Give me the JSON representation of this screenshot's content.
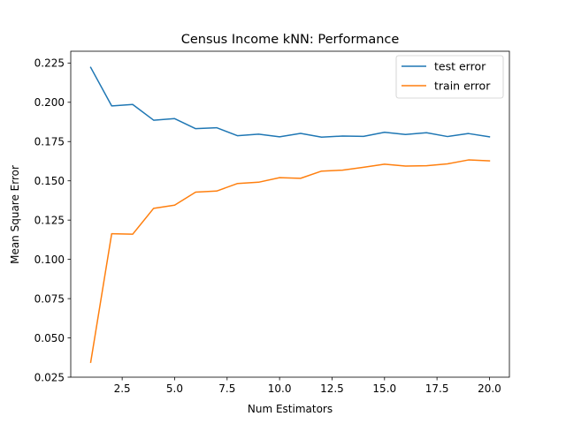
{
  "chart_data": {
    "type": "line",
    "title": "Census Income kNN: Performance",
    "xlabel": "Num Estimators",
    "ylabel": "Mean Square Error",
    "xlim": [
      0.05,
      20.95
    ],
    "ylim": [
      0.025,
      0.2325
    ],
    "xticks": [
      2.5,
      5.0,
      7.5,
      10.0,
      12.5,
      15.0,
      17.5,
      20.0
    ],
    "xtick_labels": [
      "2.5",
      "5.0",
      "7.5",
      "10.0",
      "12.5",
      "15.0",
      "17.5",
      "20.0"
    ],
    "yticks": [
      0.025,
      0.05,
      0.075,
      0.1,
      0.125,
      0.15,
      0.175,
      0.2,
      0.225
    ],
    "ytick_labels": [
      "0.025",
      "0.050",
      "0.075",
      "0.100",
      "0.125",
      "0.150",
      "0.175",
      "0.200",
      "0.225"
    ],
    "grid": false,
    "legend_position": "top-right",
    "x": [
      1,
      2,
      3,
      4,
      5,
      6,
      7,
      8,
      9,
      10,
      11,
      12,
      13,
      14,
      15,
      16,
      17,
      18,
      19,
      20
    ],
    "series": [
      {
        "name": "test error",
        "color": "#1f77b4",
        "values": [
          0.2222,
          0.1977,
          0.1986,
          0.1886,
          0.1896,
          0.1832,
          0.1838,
          0.1787,
          0.1797,
          0.178,
          0.1802,
          0.1778,
          0.1785,
          0.1783,
          0.1809,
          0.1795,
          0.1806,
          0.1782,
          0.1801,
          0.178
        ]
      },
      {
        "name": "train error",
        "color": "#ff7f0e",
        "values": [
          0.0345,
          0.1163,
          0.116,
          0.1325,
          0.1345,
          0.1428,
          0.1435,
          0.1483,
          0.1491,
          0.152,
          0.1516,
          0.1562,
          0.1568,
          0.1586,
          0.1606,
          0.1594,
          0.1596,
          0.1608,
          0.1633,
          0.1627
        ]
      }
    ]
  }
}
